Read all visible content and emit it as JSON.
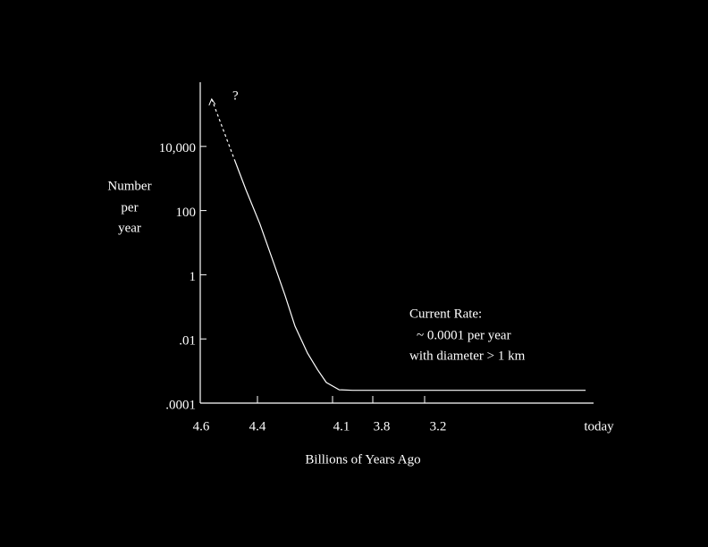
{
  "chart_data": {
    "type": "line",
    "ylabel": [
      "Number",
      "per",
      "year"
    ],
    "xlabel": "Billions of Years Ago",
    "annotations": [
      "?",
      "Current Rate:",
      "~ 0.0001 per year",
      "with diameter > 1 km"
    ],
    "ylog": true,
    "ylim": [
      0.0001,
      1000000
    ],
    "yticks": [
      {
        "value": 0.0001,
        "label": ".0001"
      },
      {
        "value": 0.01,
        "label": ".01"
      },
      1,
      100,
      {
        "value": 10000,
        "label": "10,000"
      }
    ],
    "xlim": [
      4.6,
      0
    ],
    "xticks": [
      4.6,
      4.4,
      4.1,
      3.8,
      3.2,
      {
        "value": 0,
        "label": "today"
      }
    ],
    "color": "#ffffff",
    "lines": [
      {
        "style": "dashed",
        "x": [
          4.56,
          4.48
        ],
        "values": [
          300000,
          3800
        ]
      },
      {
        "style": "solid",
        "x": [
          4.48,
          4.44,
          4.39,
          4.34,
          4.29,
          4.25,
          4.2,
          4.16,
          4.125,
          4.1,
          4.05,
          3.95,
          0.15
        ],
        "values": [
          3800,
          440,
          38,
          3,
          0.23,
          0.025,
          0.0036,
          0.0011,
          0.00044,
          0.00034,
          0.00026,
          0.00025,
          0.00025
        ]
      }
    ]
  }
}
